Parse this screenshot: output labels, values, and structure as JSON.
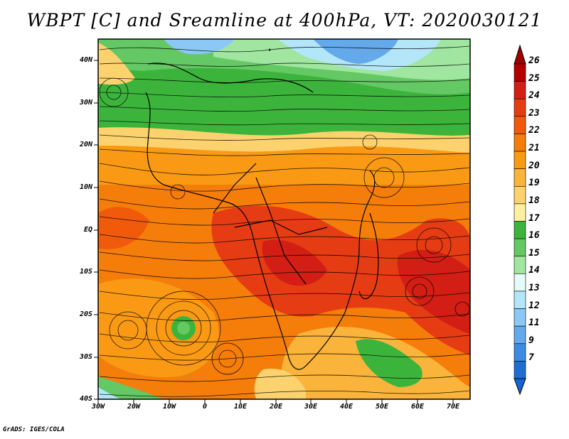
{
  "title": "WBPT [C] and Sreamline at 400hPa, VT: 2020030121",
  "credit": "GrADS: IGES/COLA",
  "lat_labels": [
    "40N",
    "30N",
    "20N",
    "10N",
    "EQ",
    "10S",
    "20S",
    "30S",
    "40S"
  ],
  "lon_labels": [
    "30W",
    "20W",
    "10W",
    "0",
    "10E",
    "20E",
    "30E",
    "40E",
    "50E",
    "60E",
    "70E"
  ],
  "colorbar": {
    "labels": [
      "26",
      "25",
      "24",
      "23",
      "22",
      "21",
      "20",
      "19",
      "18",
      "17",
      "16",
      "15",
      "14",
      "13",
      "12",
      "11",
      "9",
      "7"
    ],
    "colors": [
      "#b40000",
      "#d21e14",
      "#e63c14",
      "#f05a0a",
      "#f57d0a",
      "#fa9a14",
      "#fab43c",
      "#fcd26e",
      "#fff0a0",
      "#3cb43c",
      "#64c864",
      "#a0e6a0",
      "#e6fafa",
      "#b4e6fa",
      "#8cc8f5",
      "#64aaeb",
      "#3c8ce1",
      "#1e6ed2"
    ],
    "tip_top_color": "#a00000",
    "tip_bottom_color": "#1464d2"
  },
  "map": {
    "lon_range": [
      -30,
      75
    ],
    "lat_range": [
      -40,
      45
    ],
    "field": "Wet bulb potential temperature (C) with 400hPa streamlines"
  }
}
